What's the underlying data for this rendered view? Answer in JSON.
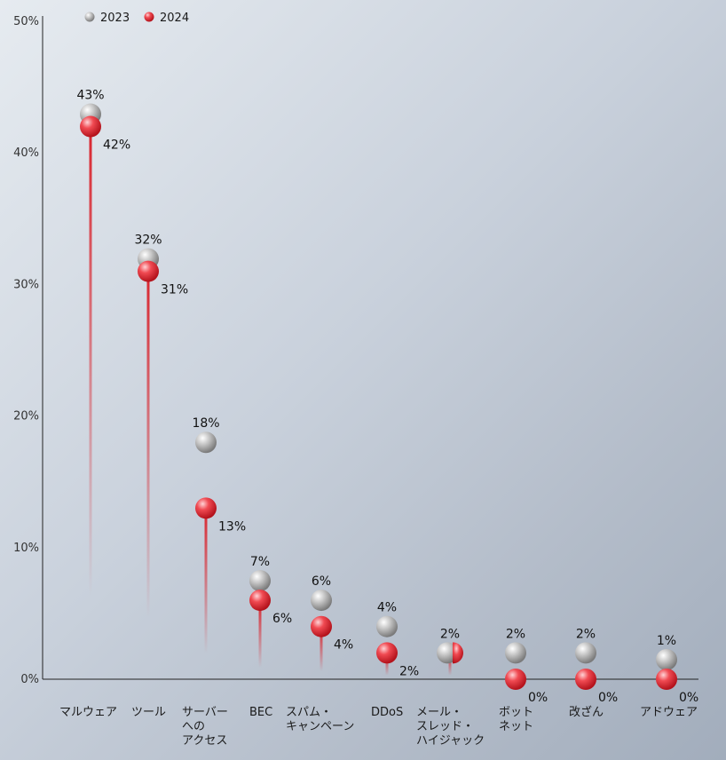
{
  "chart_data": {
    "type": "scatter",
    "categories": [
      [
        "マルウェア"
      ],
      [
        "ツール"
      ],
      [
        "サーバー",
        "への",
        "アクセス"
      ],
      [
        "BEC"
      ],
      [
        "スパム・",
        "キャンペーン"
      ],
      [
        "DDoS"
      ],
      [
        "メール・",
        "スレッド・",
        "ハイジャック"
      ],
      [
        "ボット",
        "ネット"
      ],
      [
        "改ざん"
      ],
      [
        "アドウェア"
      ]
    ],
    "series": [
      {
        "name": "2023",
        "values": [
          43,
          32,
          18,
          7,
          6,
          4,
          2,
          2,
          2,
          1
        ],
        "labels": [
          "43%",
          "32%",
          "18%",
          "7%",
          "6%",
          "4%",
          "2%",
          "2%",
          "2%",
          "1%"
        ]
      },
      {
        "name": "2024",
        "values": [
          42,
          31,
          13,
          6,
          4,
          2,
          2,
          0,
          0,
          0
        ],
        "labels": [
          "42%",
          "31%",
          "13%",
          "6%",
          "4%",
          "2%",
          "",
          "0%",
          "0%",
          "0%"
        ]
      }
    ],
    "ylim": [
      0,
      50
    ],
    "yticks": [
      "0%",
      "10%",
      "20%",
      "30%",
      "40%",
      "50%"
    ],
    "xlabel": "",
    "ylabel": "",
    "legend_position": "top-left",
    "colors": {
      "2023": "#a8a8a8",
      "2024": "#e8323c"
    }
  }
}
